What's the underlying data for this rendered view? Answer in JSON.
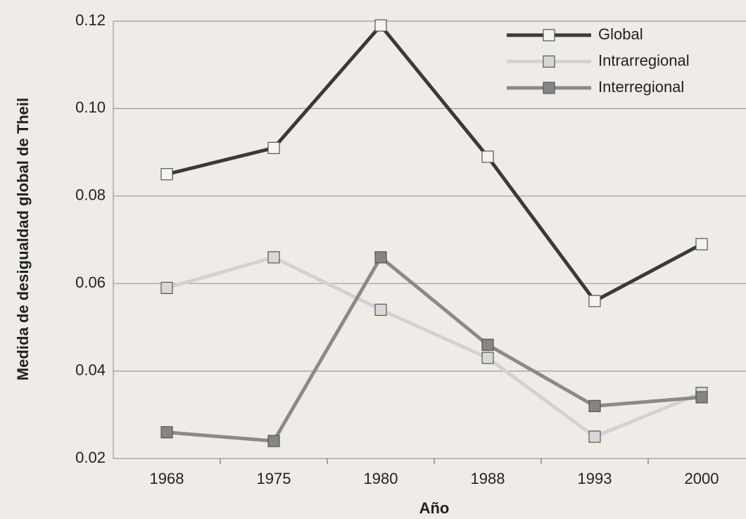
{
  "chart_data": {
    "type": "line",
    "ylabel": "Medida de desigualdad global de Theil",
    "xlabel": "Año",
    "categories": [
      "1968",
      "1975",
      "1980",
      "1988",
      "1993",
      "2000"
    ],
    "series": [
      {
        "name": "Global",
        "color": "#3a3a3a",
        "marker_fill": "#f4f4f4",
        "values": [
          0.085,
          0.091,
          0.119,
          0.089,
          0.056,
          0.069
        ]
      },
      {
        "name": "Intrarregional",
        "color": "#d2d2d2",
        "marker_fill": "#d8d8d8",
        "values": [
          0.059,
          0.066,
          0.054,
          0.043,
          0.025,
          0.035
        ]
      },
      {
        "name": "Interregional",
        "color": "#8a8a8a",
        "marker_fill": "#858585",
        "values": [
          0.026,
          0.024,
          0.066,
          0.046,
          0.032,
          0.034
        ]
      }
    ],
    "ylim": [
      0.02,
      0.12
    ],
    "yticks": [
      0.02,
      0.04,
      0.06,
      0.08,
      {
        "value": 0.1,
        "label": "0.10"
      },
      0.12
    ],
    "grid": true,
    "legend": "top-right"
  }
}
